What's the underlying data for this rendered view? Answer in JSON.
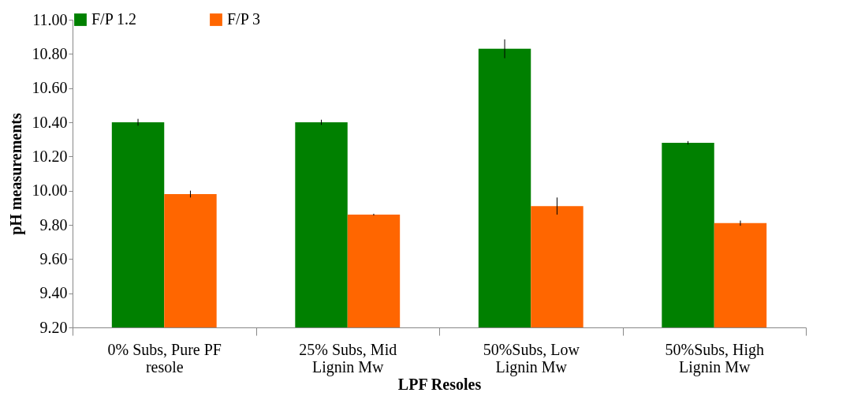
{
  "chart_data": {
    "type": "bar",
    "xlabel": "LPF Resoles",
    "ylabel": "pH measurements",
    "categories": [
      "0% Subs, Pure PF resole",
      "25% Subs, Mid Lignin Mw",
      "50%Subs, Low Lignin Mw",
      "50%Subs, High Lignin Mw"
    ],
    "series": [
      {
        "name": "F/P 1.2",
        "color": "#008000",
        "values": [
          10.4,
          10.4,
          10.83,
          10.28
        ],
        "errors": [
          0.02,
          0.015,
          0.055,
          0.01
        ]
      },
      {
        "name": "F/P 3",
        "color": "#ff6600",
        "values": [
          9.98,
          9.86,
          9.91,
          9.81
        ],
        "errors": [
          0.02,
          0.005,
          0.05,
          0.015
        ]
      }
    ],
    "ylim": [
      9.2,
      11.0
    ],
    "yticks": [
      {
        "value": 9.2,
        "label": "9.20"
      },
      {
        "value": 9.4,
        "label": "9.40"
      },
      {
        "value": 9.6,
        "label": "9.60"
      },
      {
        "value": 9.8,
        "label": "9.80"
      },
      {
        "value": 10.0,
        "label": "10.00"
      },
      {
        "value": 10.2,
        "label": "10.20"
      },
      {
        "value": 10.4,
        "label": "10.40"
      },
      {
        "value": 10.6,
        "label": "10.60"
      },
      {
        "value": 10.8,
        "label": "10.80"
      },
      {
        "value": 11.0,
        "label": "11.00"
      }
    ],
    "grid": false,
    "legend": "top"
  }
}
